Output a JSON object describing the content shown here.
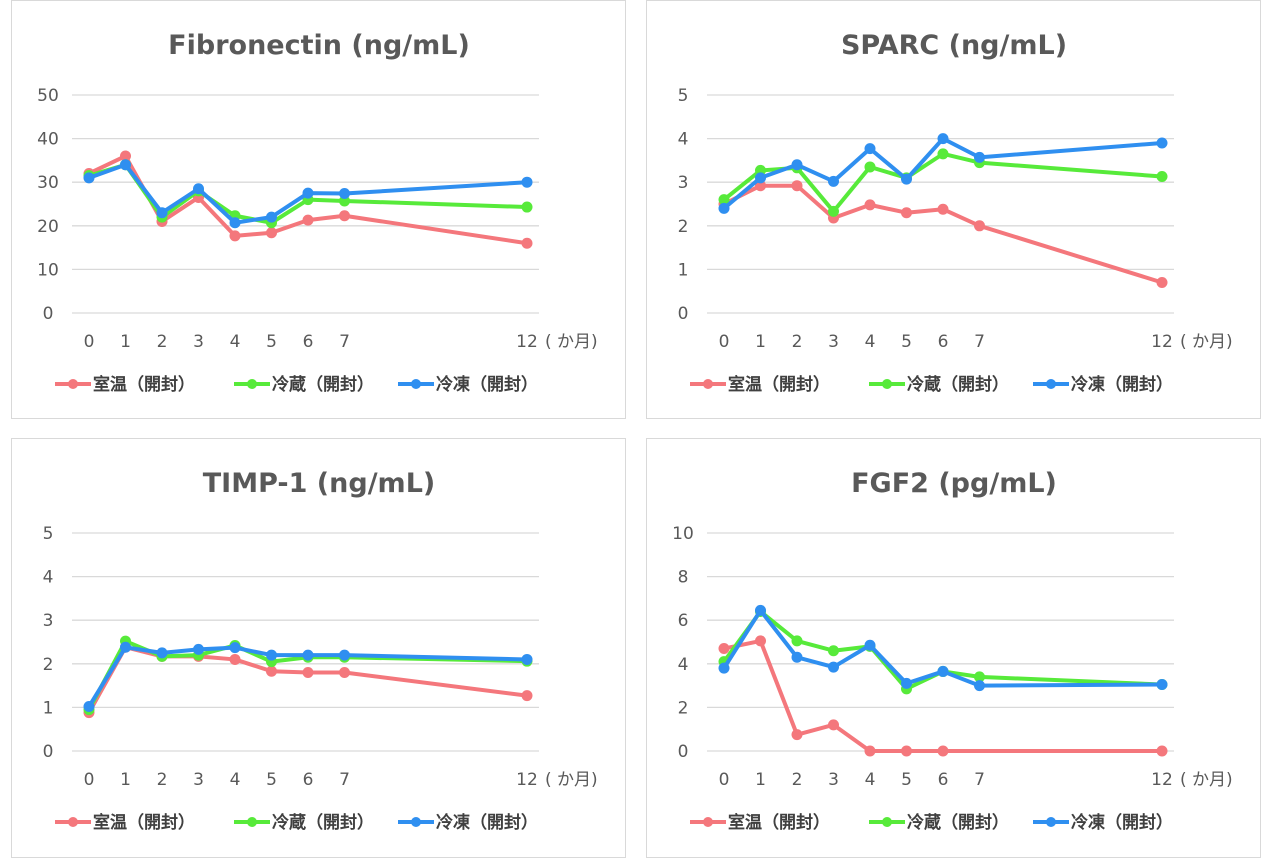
{
  "colors": {
    "room_temp": "#f4777c",
    "refrigerated": "#57ea3a",
    "frozen": "#2f8ff0"
  },
  "chart_data": [
    {
      "type": "line",
      "title": "Fibronectin (ng/mL)",
      "xlabel": "",
      "x_unit_label": "( か月)",
      "ylabel": "",
      "x": [
        0,
        1,
        2,
        3,
        4,
        5,
        6,
        7,
        12
      ],
      "x_tick_labels": [
        "0",
        "1",
        "2",
        "3",
        "4",
        "5",
        "6",
        "7",
        "12"
      ],
      "ylim": [
        0,
        50
      ],
      "y_ticks": [
        0,
        10,
        20,
        30,
        40,
        50
      ],
      "grid": true,
      "legend_position": "bottom",
      "series": [
        {
          "name": "室温（開封）",
          "color_key": "room_temp",
          "values": [
            32,
            36,
            21,
            26.5,
            17.7,
            18.4,
            21.3,
            22.3,
            16
          ]
        },
        {
          "name": "冷蔵（開封）",
          "color_key": "refrigerated",
          "values": [
            31.5,
            34,
            22,
            28,
            22.3,
            20.7,
            26,
            25.7,
            24.3
          ]
        },
        {
          "name": "冷凍（開封）",
          "color_key": "frozen",
          "values": [
            31,
            34,
            23,
            28.5,
            20.7,
            22,
            27.5,
            27.4,
            30
          ]
        }
      ]
    },
    {
      "type": "line",
      "title": "SPARC (ng/mL)",
      "xlabel": "",
      "x_unit_label": "( か月)",
      "ylabel": "",
      "x": [
        0,
        1,
        2,
        3,
        4,
        5,
        6,
        7,
        12
      ],
      "x_tick_labels": [
        "0",
        "1",
        "2",
        "3",
        "4",
        "5",
        "6",
        "7",
        "12"
      ],
      "ylim": [
        0,
        5
      ],
      "y_ticks": [
        0,
        1,
        2,
        3,
        4,
        5
      ],
      "grid": true,
      "legend_position": "bottom",
      "series": [
        {
          "name": "室温（開封）",
          "color_key": "room_temp",
          "values": [
            2.5,
            2.92,
            2.92,
            2.18,
            2.48,
            2.3,
            2.38,
            2.0,
            0.7
          ]
        },
        {
          "name": "冷蔵（開封）",
          "color_key": "refrigerated",
          "values": [
            2.6,
            3.27,
            3.33,
            2.33,
            3.35,
            3.1,
            3.65,
            3.45,
            3.13
          ]
        },
        {
          "name": "冷凍（開封）",
          "color_key": "frozen",
          "values": [
            2.4,
            3.1,
            3.4,
            3.02,
            3.77,
            3.07,
            4.0,
            3.57,
            3.9
          ]
        }
      ]
    },
    {
      "type": "line",
      "title": "TIMP-1 (ng/mL)",
      "xlabel": "",
      "x_unit_label": "( か月)",
      "ylabel": "",
      "x": [
        0,
        1,
        2,
        3,
        4,
        5,
        6,
        7,
        12
      ],
      "x_tick_labels": [
        "0",
        "1",
        "2",
        "3",
        "4",
        "5",
        "6",
        "7",
        "12"
      ],
      "ylim": [
        0,
        5
      ],
      "y_ticks": [
        0,
        1,
        2,
        3,
        4,
        5
      ],
      "grid": true,
      "legend_position": "bottom",
      "series": [
        {
          "name": "室温（開封）",
          "color_key": "room_temp",
          "values": [
            0.88,
            2.38,
            2.17,
            2.17,
            2.1,
            1.83,
            1.8,
            1.8,
            1.27
          ]
        },
        {
          "name": "冷蔵（開封）",
          "color_key": "refrigerated",
          "values": [
            0.95,
            2.52,
            2.17,
            2.2,
            2.42,
            2.05,
            2.15,
            2.15,
            2.06
          ]
        },
        {
          "name": "冷凍（開封）",
          "color_key": "frozen",
          "values": [
            1.02,
            2.38,
            2.25,
            2.33,
            2.37,
            2.2,
            2.2,
            2.2,
            2.1
          ]
        }
      ]
    },
    {
      "type": "line",
      "title": "FGF2 (pg/mL)",
      "xlabel": "",
      "x_unit_label": "( か月)",
      "ylabel": "",
      "x": [
        0,
        1,
        2,
        3,
        4,
        5,
        6,
        7,
        12
      ],
      "x_tick_labels": [
        "0",
        "1",
        "2",
        "3",
        "4",
        "5",
        "6",
        "7",
        "12"
      ],
      "ylim": [
        0,
        10
      ],
      "y_ticks": [
        0,
        2,
        4,
        6,
        8,
        10
      ],
      "grid": true,
      "legend_position": "bottom",
      "series": [
        {
          "name": "室温（開封）",
          "color_key": "room_temp",
          "values": [
            4.7,
            5.05,
            0.75,
            1.2,
            0,
            0,
            0,
            null,
            0
          ]
        },
        {
          "name": "冷蔵（開封）",
          "color_key": "refrigerated",
          "values": [
            4.1,
            6.4,
            5.05,
            4.6,
            4.8,
            2.85,
            3.65,
            3.4,
            3.05
          ]
        },
        {
          "name": "冷凍（開封）",
          "color_key": "frozen",
          "values": [
            3.8,
            6.45,
            4.3,
            3.85,
            4.85,
            3.1,
            3.65,
            3.0,
            3.05
          ]
        }
      ]
    }
  ]
}
